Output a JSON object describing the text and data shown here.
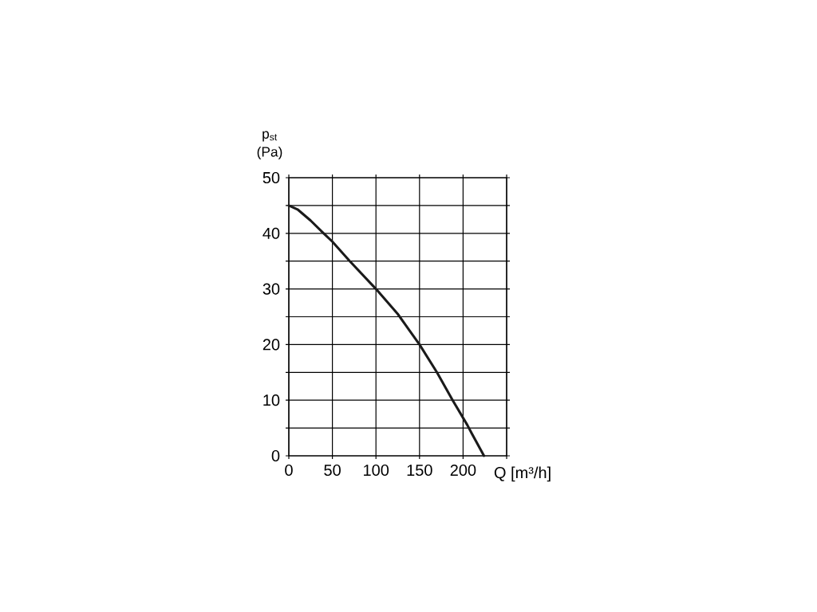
{
  "chart_data": {
    "type": "line",
    "xlabel": "Q [m³/h]",
    "ylabel": "p$_{st}$ (Pa)",
    "x": [
      0,
      10,
      25,
      40,
      50,
      70,
      100,
      125,
      150,
      170,
      188,
      205,
      210,
      224
    ],
    "series": [
      {
        "color": "#1a1a1a",
        "values": [
          45,
          44.3,
          42.3,
          40,
          38.5,
          35,
          30,
          25.5,
          20,
          15,
          10,
          5.5,
          4,
          0
        ]
      }
    ],
    "xlim": [
      0,
      250
    ],
    "ylim": [
      0,
      50
    ],
    "xticks": [
      0,
      50,
      100,
      150,
      200,
      {
        "value": 250,
        "label": null
      }
    ],
    "yticks": [
      0,
      {
        "value": 5,
        "label": null
      },
      10,
      {
        "value": 15,
        "label": null
      },
      20,
      {
        "value": 25,
        "label": null
      },
      30,
      {
        "value": 35,
        "label": null
      },
      40,
      {
        "value": 45,
        "label": null
      },
      50
    ],
    "grid": true,
    "marker": "none",
    "line_style": "solid"
  }
}
